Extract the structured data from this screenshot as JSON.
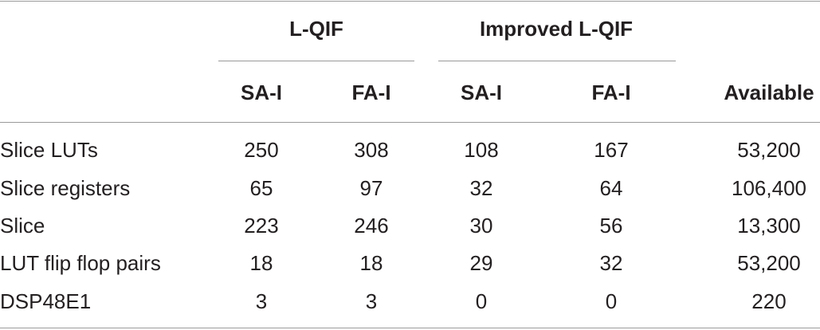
{
  "table": {
    "group_headers": [
      "L-QIF",
      "Improved L-QIF"
    ],
    "sub_headers": [
      "SA-I",
      "FA-I",
      "SA-I",
      "FA-I",
      "Available"
    ],
    "rows": [
      {
        "label": "Slice LUTs",
        "values": [
          "250",
          "308",
          "108",
          "167",
          "53,200"
        ]
      },
      {
        "label": "Slice registers",
        "values": [
          "65",
          "97",
          "32",
          "64",
          "106,400"
        ]
      },
      {
        "label": "Slice",
        "values": [
          "223",
          "246",
          "30",
          "56",
          "13,300"
        ]
      },
      {
        "label": "LUT flip flop pairs",
        "values": [
          "18",
          "18",
          "29",
          "32",
          "53,200"
        ]
      },
      {
        "label": "DSP48E1",
        "values": [
          "3",
          "3",
          "0",
          "0",
          "220"
        ]
      }
    ]
  }
}
